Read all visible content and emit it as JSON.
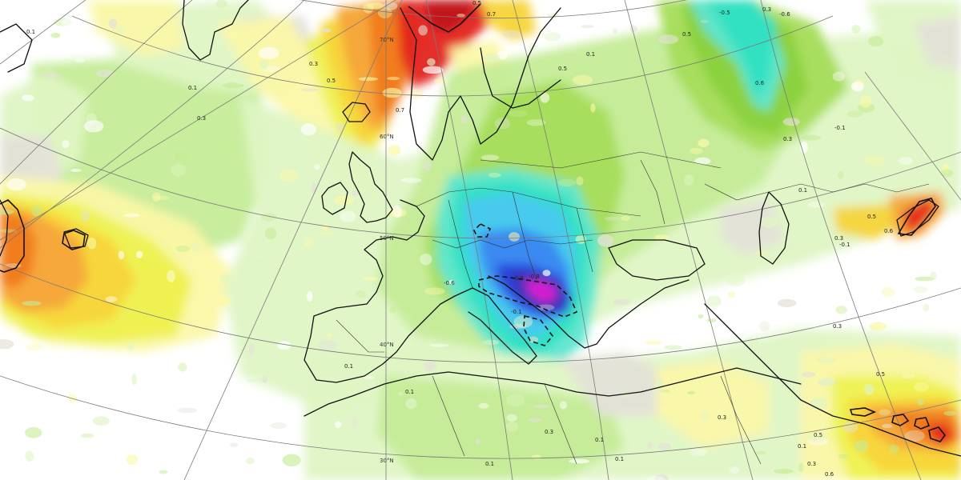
{
  "map": {
    "palette": {
      "white": "#ffffff",
      "grey": "#e4e1d8",
      "pale_green": "#dff5c4",
      "light_green": "#c5ec97",
      "green": "#a5dd5a",
      "mid_green": "#8ad13d",
      "pale_yellow": "#fbf8a8",
      "yellow": "#eef14f",
      "gold": "#f7d43a",
      "orange": "#f5a53a",
      "dark_orange": "#f07a1e",
      "red": "#e3221c",
      "dark_red": "#c0121a",
      "cyan": "#2fe0c2",
      "cyan_light": "#5ee6d0",
      "sky": "#48c8f0",
      "blue": "#3a86f0",
      "dark_blue": "#2a3ed8",
      "indigo": "#3c2fb0",
      "magenta": "#e21fd6",
      "graticule": "#7a7a7a",
      "coast": "#111111"
    },
    "latitude_labels": [
      "70°N",
      "60°N",
      "50°N",
      "40°N",
      "30°N"
    ],
    "contour_labels": [
      "0.1",
      "0.3",
      "0.1",
      "0.7",
      "0.5",
      "0.3",
      "0.5",
      "0.7",
      "0.5",
      "0.5",
      "-0.6",
      "0.6",
      "-0.5",
      "0.1",
      "0.3",
      "-0.1",
      "0.1",
      "0.5",
      "0.6",
      "0.3",
      "-0.1",
      "-0.8",
      "-0.9",
      "-0.6",
      "-0.1",
      "0.3",
      "0.1",
      "0.1",
      "0.3",
      "0.1",
      "0.5",
      "0.3",
      "0.3",
      "0.5",
      "0.1",
      "0.6",
      "0.1",
      "0.1",
      "0.3"
    ]
  }
}
